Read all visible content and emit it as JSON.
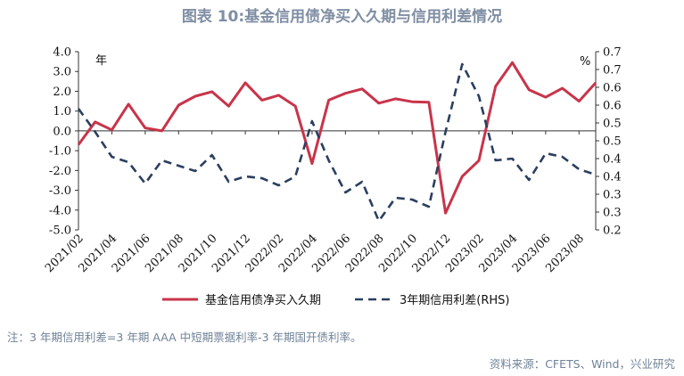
{
  "title": "图表 10:基金信用债净买入久期与信用利差情况",
  "note": "注：3 年期信用利差=3 年期 AAA 中短期票据利率-3 年期国开债利率。",
  "source": "资料来源：CFETS、Wind，兴业研究",
  "chart_data": {
    "type": "line",
    "left_unit": "年",
    "right_unit": "%",
    "x_labels": [
      "2021/02",
      "2021/04",
      "2021/06",
      "2021/08",
      "2021/10",
      "2021/12",
      "2022/02",
      "2022/04",
      "2022/06",
      "2022/08",
      "2022/10",
      "2022/12",
      "2023/02",
      "2023/04",
      "2023/06",
      "2023/08"
    ],
    "y_left": {
      "min": -5.0,
      "max": 4.0,
      "ticks": [
        "-5.0",
        "-4.0",
        "-3.0",
        "-2.0",
        "-1.0",
        "0.0",
        "1.0",
        "2.0",
        "3.0",
        "4.0"
      ]
    },
    "y_right": {
      "min": 0.2,
      "max": 0.7,
      "ticks": [
        "0.2",
        "0.3",
        "0.3",
        "0.4",
        "0.4",
        "0.5",
        "0.5",
        "0.6",
        "0.6",
        "0.7",
        "0.7"
      ]
    },
    "series": [
      {
        "name": "基金信用债净买入久期",
        "axis": "left",
        "color": "#c8344a",
        "dash": false,
        "values": [
          -0.7,
          0.45,
          0.05,
          1.35,
          0.15,
          0.0,
          1.3,
          1.75,
          1.98,
          1.25,
          2.43,
          1.55,
          1.8,
          1.25,
          -1.65,
          1.55,
          1.9,
          2.12,
          1.4,
          1.62,
          1.47,
          1.45,
          -4.15,
          -2.3,
          -1.5,
          2.25,
          3.45,
          2.08,
          1.7,
          2.15,
          1.5,
          2.43
        ]
      },
      {
        "name": "3年期信用利差(RHS)",
        "axis": "right",
        "color": "#2a3f5f",
        "dash": true,
        "values": [
          0.54,
          0.475,
          0.405,
          0.39,
          0.33,
          0.395,
          0.38,
          0.365,
          0.41,
          0.335,
          0.35,
          0.345,
          0.325,
          0.35,
          0.505,
          0.395,
          0.305,
          0.335,
          0.225,
          0.29,
          0.285,
          0.265,
          0.475,
          0.665,
          0.575,
          0.395,
          0.4,
          0.34,
          0.415,
          0.405,
          0.37,
          0.355
        ]
      }
    ]
  }
}
